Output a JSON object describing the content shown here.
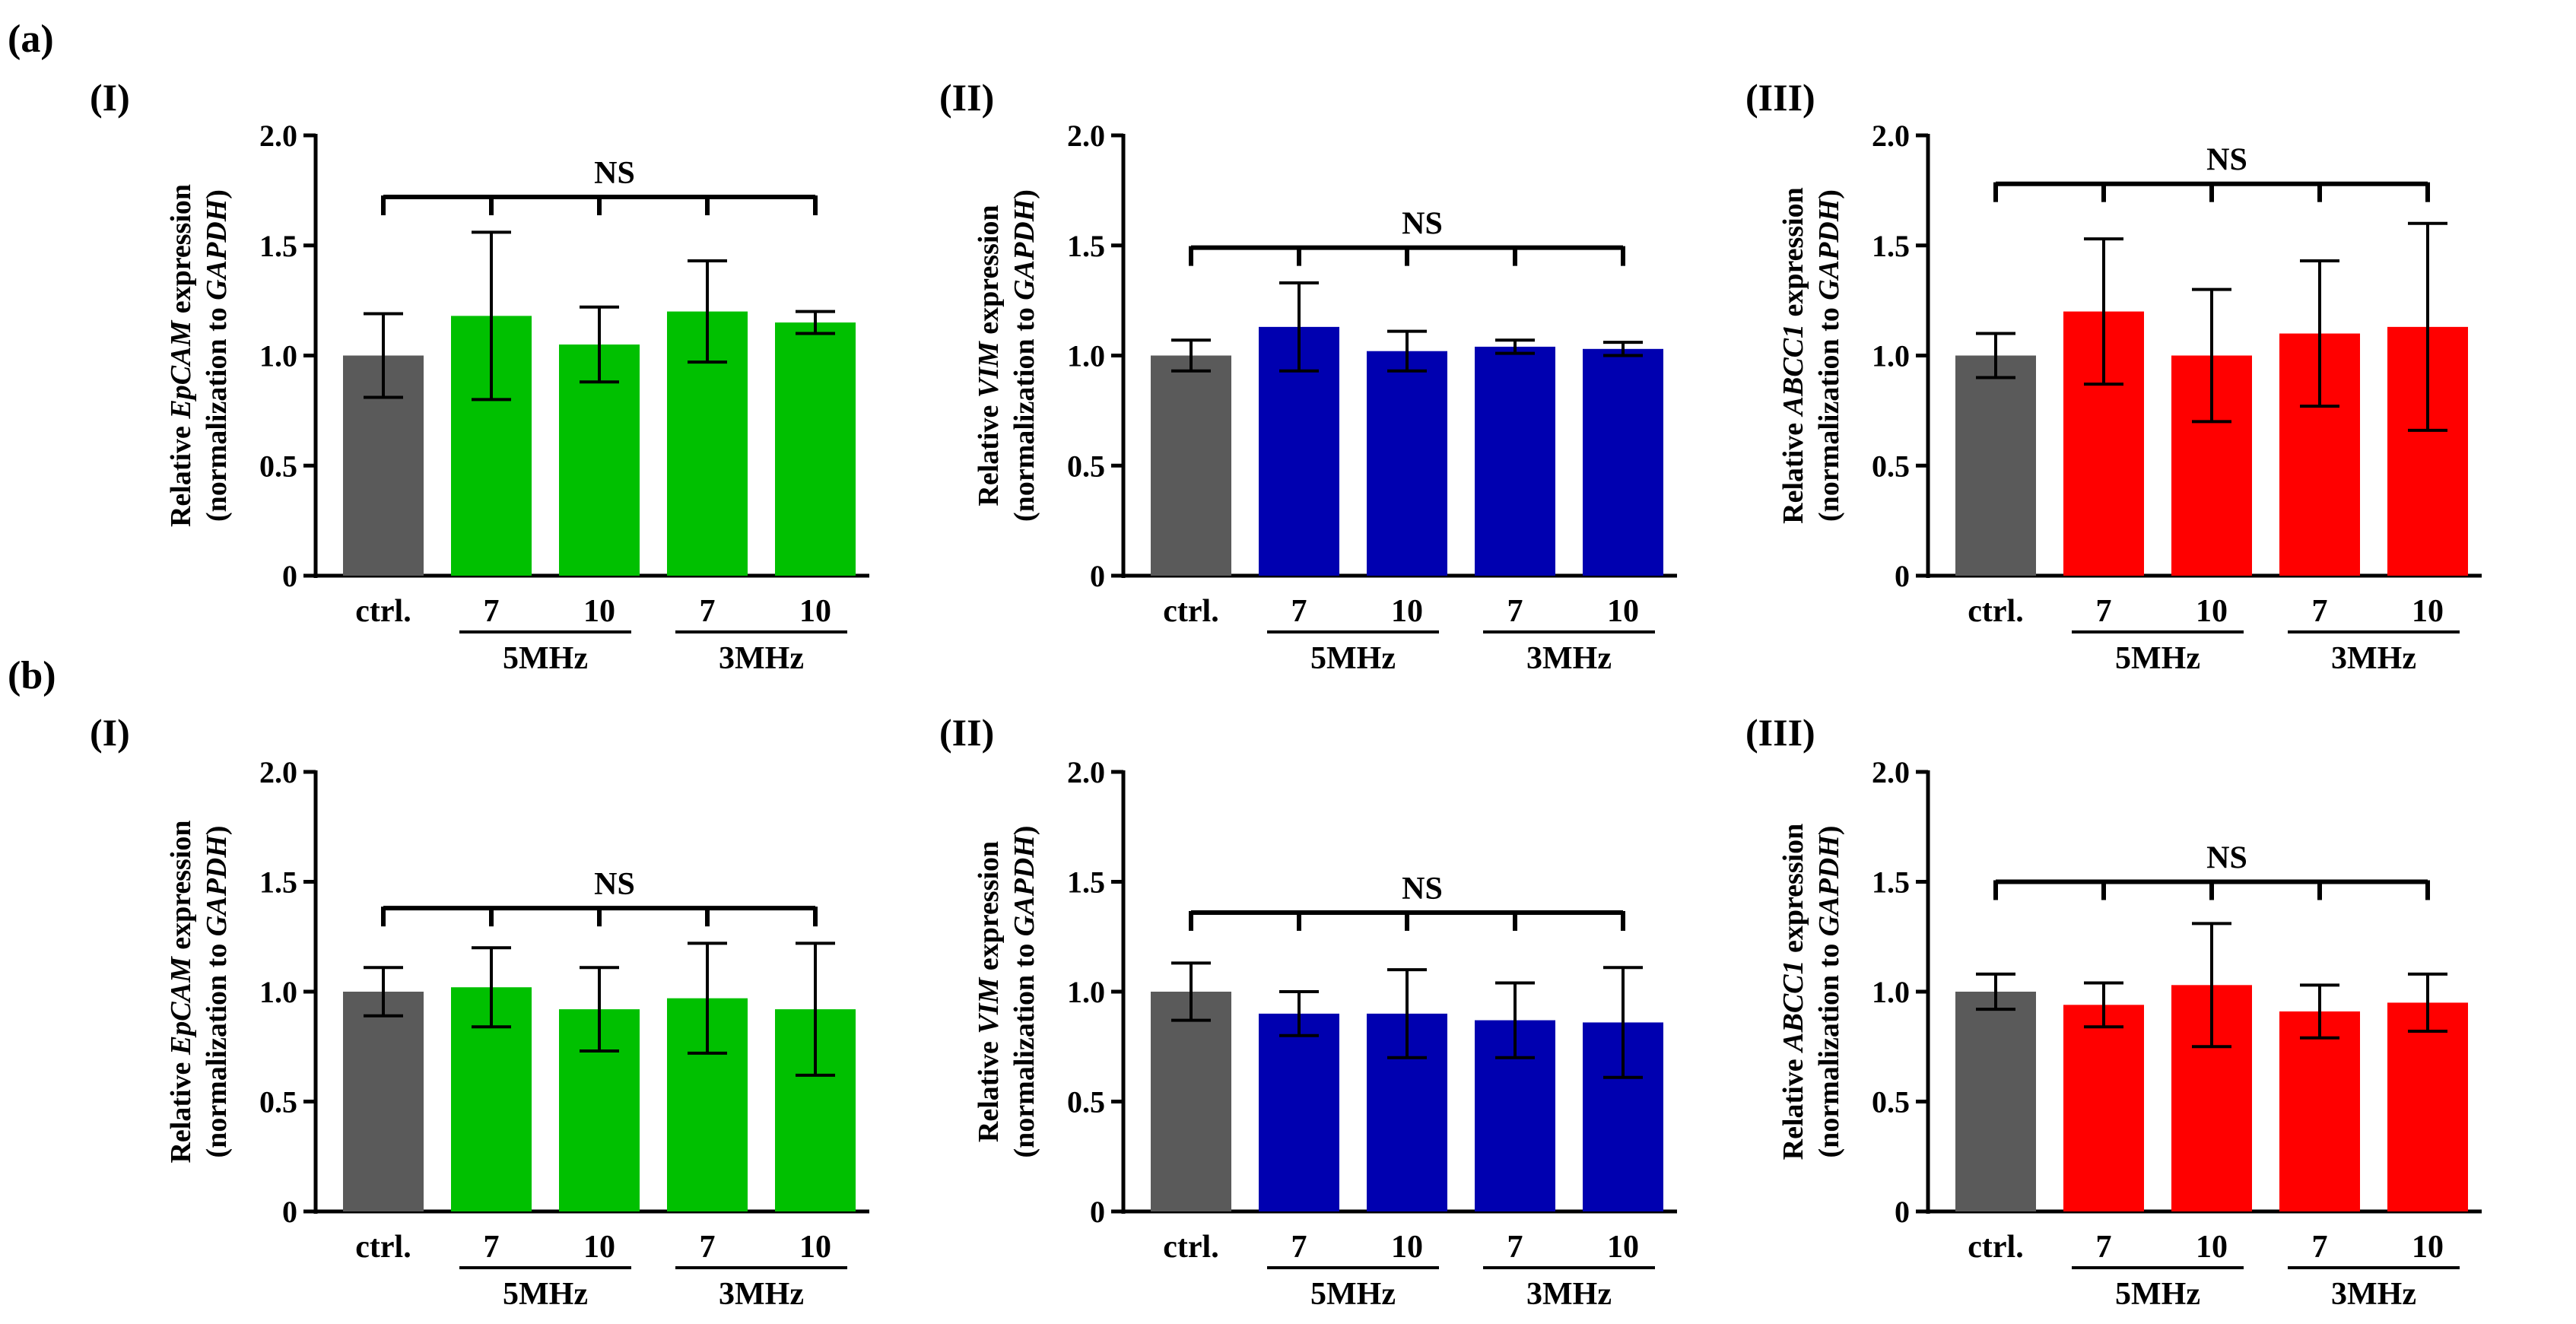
{
  "figure": {
    "row_labels": [
      "(a)",
      "(b)"
    ],
    "panel_labels": [
      "(I)",
      "(II)",
      "(III)"
    ]
  },
  "colors": {
    "ctrl": "#5a5a5a",
    "epcam": "#00c000",
    "vim": "#0000b0",
    "abcc1": "#ff0000",
    "axis": "#000000"
  },
  "chart_data": [
    {
      "type": "bar",
      "row": "(a)",
      "panel": "(I)",
      "ylabel_prefix": "Relative ",
      "gene": "EpCAM",
      "ylabel_suffix": " expression",
      "ylabel2_prefix": "(normalization to ",
      "ref_gene": "GAPDH",
      "ylabel2_suffix": ")",
      "ylim": [
        0,
        2.0
      ],
      "yticks": [
        "0",
        "0.5",
        "1.0",
        "1.5",
        "2.0"
      ],
      "ytick_values": [
        0,
        0.5,
        1.0,
        1.5,
        2.0
      ],
      "categories": [
        "ctrl.",
        "7",
        "10",
        "7",
        "10"
      ],
      "groups": [
        {
          "label": "5MHz",
          "from": 1,
          "to": 2
        },
        {
          "label": "3MHz",
          "from": 3,
          "to": 4
        }
      ],
      "values": [
        1.0,
        1.18,
        1.05,
        1.2,
        1.15
      ],
      "errors": [
        0.19,
        0.38,
        0.17,
        0.23,
        0.05
      ],
      "color_key": "epcam",
      "annotation": {
        "text": "NS",
        "level": 1.72
      }
    },
    {
      "type": "bar",
      "row": "(a)",
      "panel": "(II)",
      "ylabel_prefix": "Relative ",
      "gene": "VIM",
      "ylabel_suffix": " expression",
      "ylabel2_prefix": "(normalization to ",
      "ref_gene": "GAPDH",
      "ylabel2_suffix": ")",
      "ylim": [
        0,
        2.0
      ],
      "yticks": [
        "0",
        "0.5",
        "1.0",
        "1.5",
        "2.0"
      ],
      "ytick_values": [
        0,
        0.5,
        1.0,
        1.5,
        2.0
      ],
      "categories": [
        "ctrl.",
        "7",
        "10",
        "7",
        "10"
      ],
      "groups": [
        {
          "label": "5MHz",
          "from": 1,
          "to": 2
        },
        {
          "label": "3MHz",
          "from": 3,
          "to": 4
        }
      ],
      "values": [
        1.0,
        1.13,
        1.02,
        1.04,
        1.03
      ],
      "errors": [
        0.07,
        0.2,
        0.09,
        0.03,
        0.03
      ],
      "color_key": "vim",
      "annotation": {
        "text": "NS",
        "level": 1.49
      }
    },
    {
      "type": "bar",
      "row": "(a)",
      "panel": "(III)",
      "ylabel_prefix": "Relative ",
      "gene": "ABCC1",
      "ylabel_suffix": " expression",
      "ylabel2_prefix": "(normalization to ",
      "ref_gene": "GAPDH",
      "ylabel2_suffix": ")",
      "ylim": [
        0,
        2.0
      ],
      "yticks": [
        "0",
        "0.5",
        "1.0",
        "1.5",
        "2.0"
      ],
      "ytick_values": [
        0,
        0.5,
        1.0,
        1.5,
        2.0
      ],
      "categories": [
        "ctrl.",
        "7",
        "10",
        "7",
        "10"
      ],
      "groups": [
        {
          "label": "5MHz",
          "from": 1,
          "to": 2
        },
        {
          "label": "3MHz",
          "from": 3,
          "to": 4
        }
      ],
      "values": [
        1.0,
        1.2,
        1.0,
        1.1,
        1.13
      ],
      "errors": [
        0.1,
        0.33,
        0.3,
        0.33,
        0.47
      ],
      "color_key": "abcc1",
      "annotation": {
        "text": "NS",
        "level": 1.78
      }
    },
    {
      "type": "bar",
      "row": "(b)",
      "panel": "(I)",
      "ylabel_prefix": "Relative ",
      "gene": "EpCAM",
      "ylabel_suffix": " expression",
      "ylabel2_prefix": "(normalization to ",
      "ref_gene": "GAPDH",
      "ylabel2_suffix": ")",
      "ylim": [
        0,
        2.0
      ],
      "yticks": [
        "0",
        "0.5",
        "1.0",
        "1.5",
        "2.0"
      ],
      "ytick_values": [
        0,
        0.5,
        1.0,
        1.5,
        2.0
      ],
      "categories": [
        "ctrl.",
        "7",
        "10",
        "7",
        "10"
      ],
      "groups": [
        {
          "label": "5MHz",
          "from": 1,
          "to": 2
        },
        {
          "label": "3MHz",
          "from": 3,
          "to": 4
        }
      ],
      "values": [
        1.0,
        1.02,
        0.92,
        0.97,
        0.92
      ],
      "errors": [
        0.11,
        0.18,
        0.19,
        0.25,
        0.3
      ],
      "color_key": "epcam",
      "annotation": {
        "text": "NS",
        "level": 1.38
      }
    },
    {
      "type": "bar",
      "row": "(b)",
      "panel": "(II)",
      "ylabel_prefix": "Relative ",
      "gene": "VIM",
      "ylabel_suffix": " expression",
      "ylabel2_prefix": "(normalization to ",
      "ref_gene": "GAPDH",
      "ylabel2_suffix": ")",
      "ylim": [
        0,
        2.0
      ],
      "yticks": [
        "0",
        "0.5",
        "1.0",
        "1.5",
        "2.0"
      ],
      "ytick_values": [
        0,
        0.5,
        1.0,
        1.5,
        2.0
      ],
      "categories": [
        "ctrl.",
        "7",
        "10",
        "7",
        "10"
      ],
      "groups": [
        {
          "label": "5MHz",
          "from": 1,
          "to": 2
        },
        {
          "label": "3MHz",
          "from": 3,
          "to": 4
        }
      ],
      "values": [
        1.0,
        0.9,
        0.9,
        0.87,
        0.86
      ],
      "errors": [
        0.13,
        0.1,
        0.2,
        0.17,
        0.25
      ],
      "color_key": "vim",
      "annotation": {
        "text": "NS",
        "level": 1.36
      }
    },
    {
      "type": "bar",
      "row": "(b)",
      "panel": "(III)",
      "ylabel_prefix": "Relative ",
      "gene": "ABCC1",
      "ylabel_suffix": " expression",
      "ylabel2_prefix": "(normalization to ",
      "ref_gene": "GAPDH",
      "ylabel2_suffix": ")",
      "ylim": [
        0,
        2.0
      ],
      "yticks": [
        "0",
        "0.5",
        "1.0",
        "1.5",
        "2.0"
      ],
      "ytick_values": [
        0,
        0.5,
        1.0,
        1.5,
        2.0
      ],
      "categories": [
        "ctrl.",
        "7",
        "10",
        "7",
        "10"
      ],
      "groups": [
        {
          "label": "5MHz",
          "from": 1,
          "to": 2
        },
        {
          "label": "3MHz",
          "from": 3,
          "to": 4
        }
      ],
      "values": [
        1.0,
        0.94,
        1.03,
        0.91,
        0.95
      ],
      "errors": [
        0.08,
        0.1,
        0.28,
        0.12,
        0.13
      ],
      "color_key": "abcc1",
      "annotation": {
        "text": "NS",
        "level": 1.5
      }
    }
  ]
}
